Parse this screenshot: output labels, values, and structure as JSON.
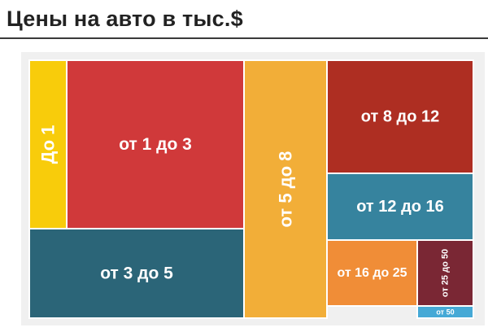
{
  "title": "Цены на авто в тыс.$",
  "chart_data": {
    "type": "treemap",
    "title": "Цены на авто в тыс.$",
    "nodes": [
      {
        "label": "До 1",
        "color": "#f8cc0b",
        "orient": "vertical"
      },
      {
        "label": "от 1 до 3",
        "color": "#d0393a",
        "orient": "horizontal"
      },
      {
        "label": "от 3 до 5",
        "color": "#2b6578",
        "orient": "horizontal"
      },
      {
        "label": "от 5 до 8",
        "color": "#f2ae38",
        "orient": "vertical"
      },
      {
        "label": "от 8 до 12",
        "color": "#ae2e22",
        "orient": "horizontal"
      },
      {
        "label": "от 12 до 16",
        "color": "#36839e",
        "orient": "horizontal"
      },
      {
        "label": "от 16 до 25",
        "color": "#f08d37",
        "orient": "horizontal"
      },
      {
        "label": "от 25 до 50",
        "color": "#7a2734",
        "orient": "vertical"
      },
      {
        "label": "от 50",
        "color": "#45a9d6",
        "orient": "horizontal"
      }
    ]
  }
}
